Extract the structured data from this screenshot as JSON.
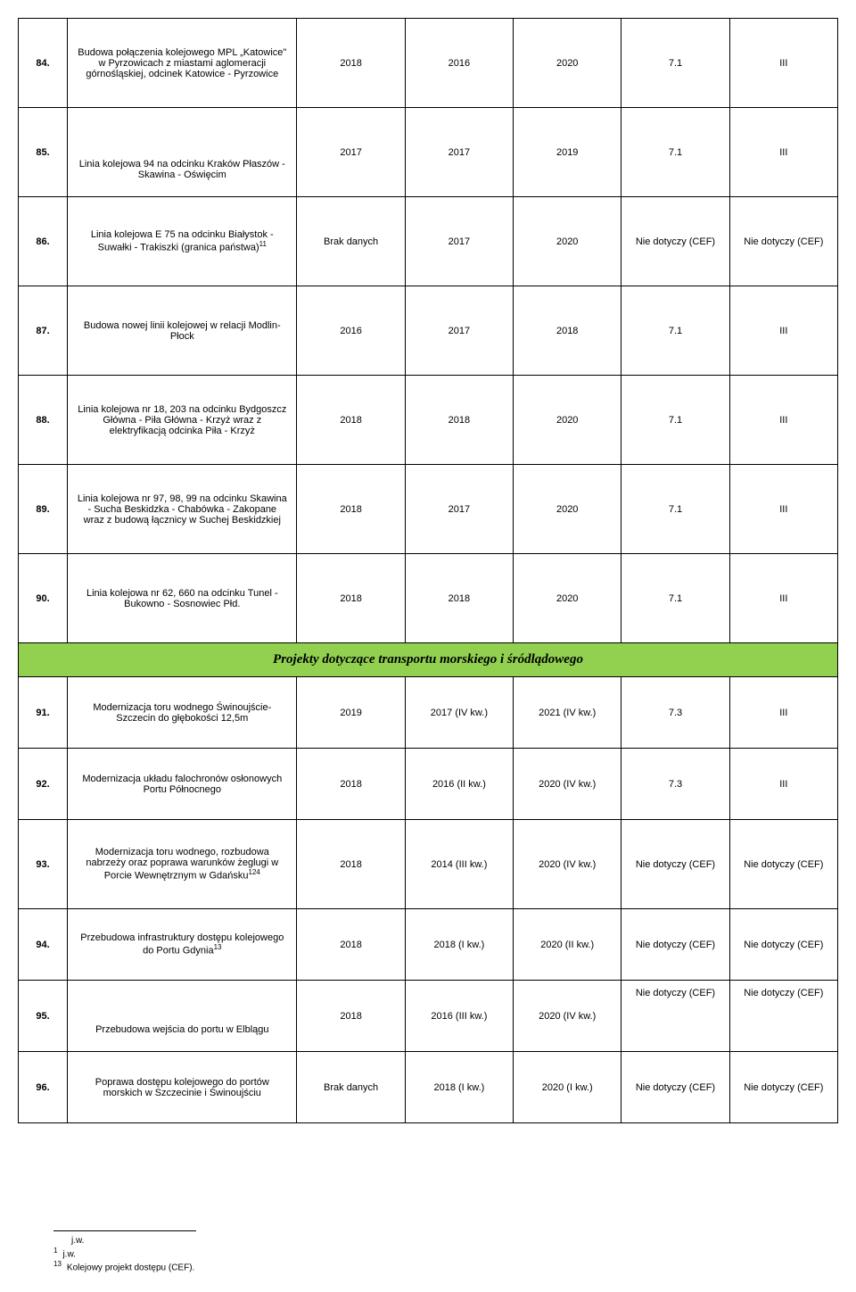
{
  "colors": {
    "section_bg": "#92d050",
    "border": "#000000",
    "background": "#ffffff",
    "text": "#000000"
  },
  "rows": [
    {
      "num": "84.",
      "desc": "Budowa połączenia kolejowego MPL „Katowice\" w Pyrzowicach z miastami aglomeracji górnośląskiej, odcinek Katowice - Pyrzowice",
      "c1": "2018",
      "c2": "2016",
      "c3": "2020",
      "c4": "7.1",
      "c5": "III",
      "h": "tall"
    },
    {
      "num": "85.",
      "desc": "Linia kolejowa 94 na odcinku Kraków Płaszów - Skawina - Oświęcim",
      "c1": "2017",
      "c2": "2017",
      "c3": "2019",
      "c4": "7.1",
      "c5": "III",
      "h": "tall",
      "desc_valign": "bottom"
    },
    {
      "num": "86.",
      "desc": "Linia kolejowa E 75 na odcinku Białystok - Suwałki - Trakiszki (granica państwa)",
      "sup": "11",
      "c1": "Brak danych",
      "c2": "2017",
      "c3": "2020",
      "c4": "Nie dotyczy (CEF)",
      "c5": "Nie dotyczy (CEF)",
      "h": "tall"
    },
    {
      "num": "87.",
      "desc": "Budowa nowej linii kolejowej w relacji Modlin-Płock",
      "c1": "2016",
      "c2": "2017",
      "c3": "2018",
      "c4": "7.1",
      "c5": "III",
      "h": "tall"
    },
    {
      "num": "88.",
      "desc": "Linia kolejowa nr 18, 203 na odcinku Bydgoszcz Główna - Piła Główna - Krzyż wraz z elektryfikacją odcinka Piła - Krzyż",
      "c1": "2018",
      "c2": "2018",
      "c3": "2020",
      "c4": "7.1",
      "c5": "III",
      "h": "tall"
    },
    {
      "num": "89.",
      "desc": "Linia kolejowa nr 97, 98, 99 na odcinku Skawina - Sucha Beskidzka - Chabówka - Zakopane wraz z budową łącznicy w Suchej Beskidzkiej",
      "c1": "2018",
      "c2": "2017",
      "c3": "2020",
      "c4": "7.1",
      "c5": "III",
      "h": "tall"
    },
    {
      "num": "90.",
      "desc": "Linia kolejowa nr 62, 660 na odcinku Tunel - Bukowno - Sosnowiec Płd.",
      "c1": "2018",
      "c2": "2018",
      "c3": "2020",
      "c4": "7.1",
      "c5": "III",
      "h": "tall"
    }
  ],
  "section_header": "Projekty dotyczące transportu morskiego i śródlądowego",
  "rows2": [
    {
      "num": "91.",
      "desc": "Modernizacja toru wodnego Świnoujście-Szczecin do głębokości 12,5m",
      "c1": "2019",
      "c2": "2017 (IV kw.)",
      "c3": "2021 (IV kw.)",
      "c4": "7.3",
      "c5": "III",
      "h": "med"
    },
    {
      "num": "92.",
      "desc": "Modernizacja układu falochronów osłonowych Portu Północnego",
      "c1": "2018",
      "c2": "2016 (II kw.)",
      "c3": "2020 (IV kw.)",
      "c4": "7.3",
      "c5": "III",
      "h": "med"
    },
    {
      "num": "93.",
      "desc": "Modernizacja toru wodnego, rozbudowa nabrzeży oraz poprawa warunków żeglugi w Porcie Wewnętrznym w Gdańsku",
      "sup": "124",
      "c1": "2018",
      "c2": "2014 (III kw.)",
      "c3": "2020 (IV kw.)",
      "c4": "Nie dotyczy (CEF)",
      "c5": "Nie dotyczy (CEF)",
      "h": "tall"
    },
    {
      "num": "94.",
      "desc": "Przebudowa infrastruktury dostępu kolejowego do Portu Gdynia",
      "sup": "13",
      "c1": "2018",
      "c2": "2018 (I kw.)",
      "c3": "2020 (II kw.)",
      "c4": "Nie dotyczy (CEF)",
      "c5": "Nie dotyczy (CEF)",
      "h": "med"
    },
    {
      "num": "95.",
      "desc": "Przebudowa wejścia do portu w Elblągu",
      "c1": "2018",
      "c2": "2016 (III kw.)",
      "c3": "2020 (IV kw.)",
      "c4": "Nie dotyczy (CEF)",
      "c5": "Nie dotyczy (CEF)",
      "h": "med",
      "c4_valign": "top",
      "c5_valign": "top",
      "desc_valign": "bottom"
    },
    {
      "num": "96.",
      "desc": "Poprawa dostępu kolejowego do portów morskich w Szczecinie i Świnoujściu",
      "c1": "Brak danych",
      "c2": "2018 (I kw.)",
      "c3": "2020 (I kw.)",
      "c4": "Nie dotyczy (CEF)",
      "c5": "Nie dotyczy (CEF)",
      "h": "med"
    }
  ],
  "footnotes": [
    {
      "num": "",
      "text": "j.w."
    },
    {
      "num": "1",
      "text": "j.w."
    },
    {
      "num": "13",
      "text": "Kolejowy projekt dostępu (CEF)."
    }
  ]
}
